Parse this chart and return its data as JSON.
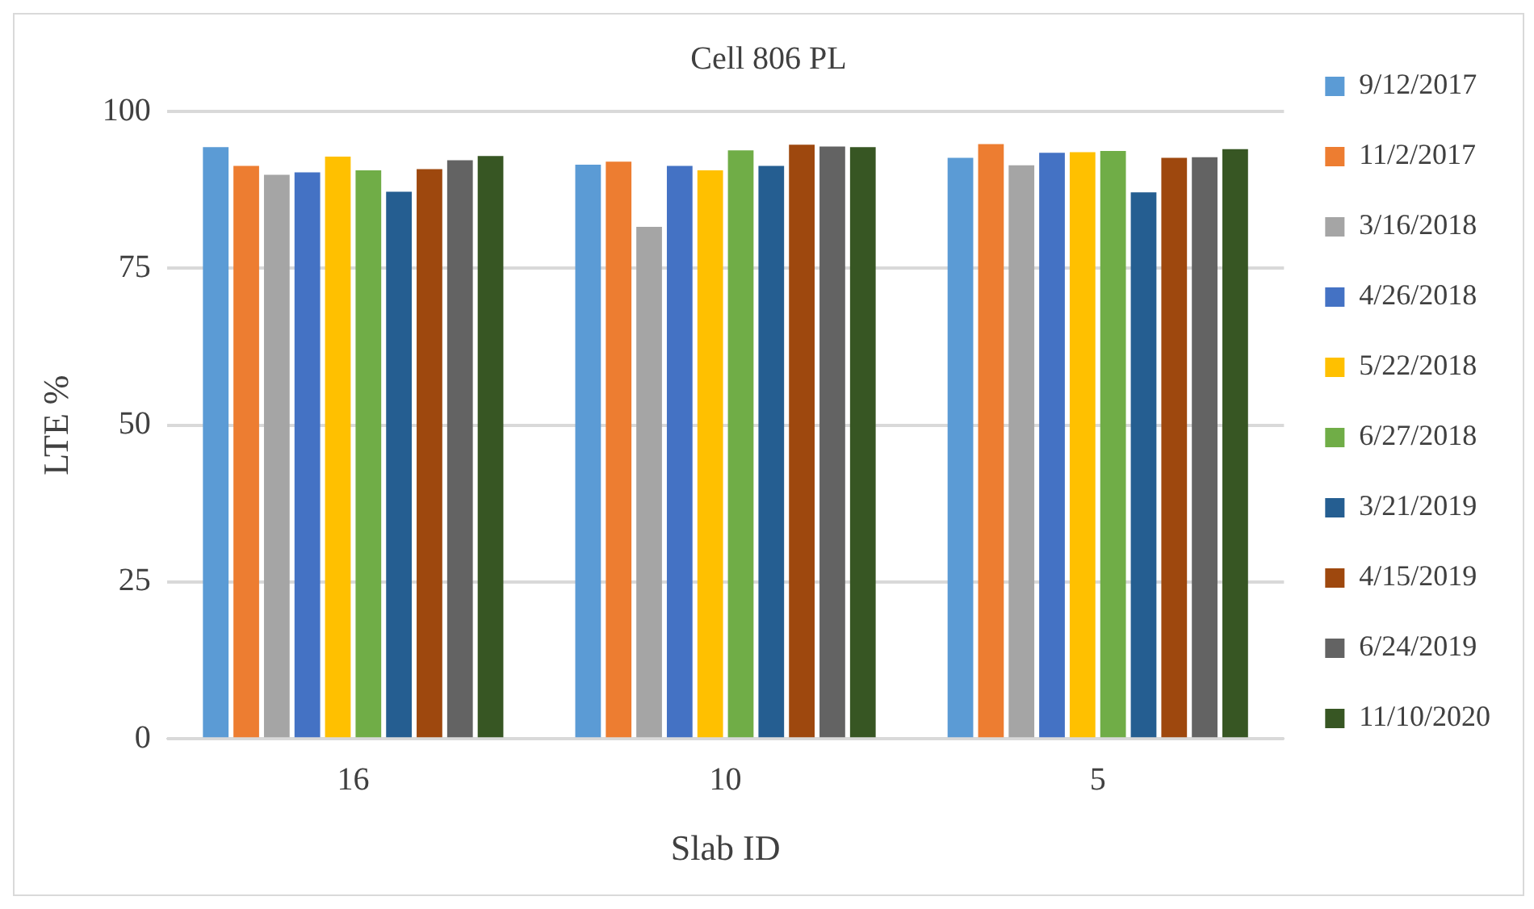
{
  "chart_data": {
    "type": "bar",
    "title": "Cell 806 PL",
    "xlabel": "Slab ID",
    "ylabel": "LTE %",
    "categories": [
      "16",
      "10",
      "5"
    ],
    "series": [
      {
        "name": "9/12/2017",
        "color": "#5b9bd5",
        "values": [
          94.3,
          91.5,
          92.6
        ]
      },
      {
        "name": "11/2/2017",
        "color": "#ed7d31",
        "values": [
          91.3,
          92.0,
          94.8
        ]
      },
      {
        "name": "3/16/2018",
        "color": "#a5a5a5",
        "values": [
          89.9,
          81.6,
          91.4
        ]
      },
      {
        "name": "4/26/2018",
        "color": "#4472c4",
        "values": [
          90.3,
          91.3,
          93.4
        ]
      },
      {
        "name": "5/22/2018",
        "color": "#ffc000",
        "values": [
          92.8,
          90.6,
          93.5
        ]
      },
      {
        "name": "6/27/2018",
        "color": "#70ad47",
        "values": [
          90.6,
          93.8,
          93.7
        ]
      },
      {
        "name": "3/21/2019",
        "color": "#255e91",
        "values": [
          87.2,
          91.3,
          87.1
        ]
      },
      {
        "name": "4/15/2019",
        "color": "#9e480e",
        "values": [
          90.8,
          94.7,
          92.6
        ]
      },
      {
        "name": "6/24/2019",
        "color": "#636363",
        "values": [
          92.2,
          94.4,
          92.7
        ]
      },
      {
        "name": "11/10/2020",
        "color": "#375623",
        "values": [
          92.9,
          94.3,
          94.0
        ]
      }
    ],
    "ylim": [
      0,
      100
    ],
    "yticks": [
      0,
      25,
      50,
      75,
      100
    ],
    "grid": "y",
    "legend": "right"
  }
}
